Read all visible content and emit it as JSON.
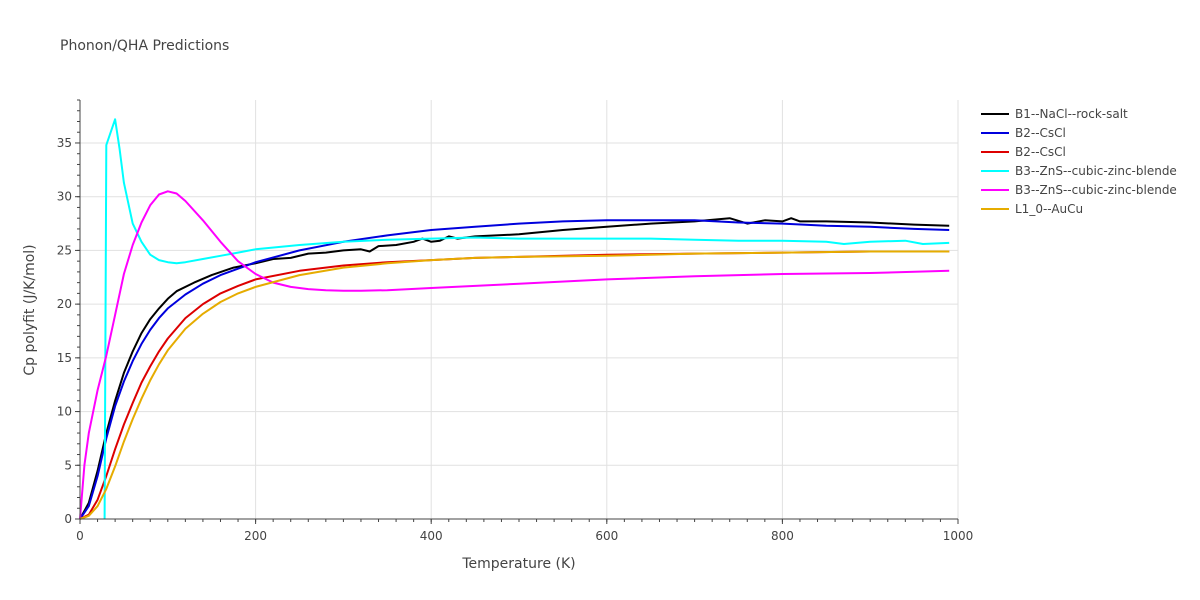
{
  "chart_data": {
    "type": "line",
    "title": "Phonon/QHA Predictions",
    "xlabel": "Temperature (K)",
    "ylabel": "Cp polyfit (J/K/mol)",
    "xlim": [
      0,
      1000
    ],
    "ylim": [
      0,
      39
    ],
    "x_ticks": [
      0,
      200,
      400,
      600,
      800,
      1000
    ],
    "y_ticks": [
      0,
      5,
      10,
      15,
      20,
      25,
      30,
      35
    ],
    "grid": true,
    "legend_position": "top-right",
    "series": [
      {
        "name": "B1--NaCl--rock-salt",
        "color": "#000000",
        "points": [
          [
            0,
            0
          ],
          [
            10,
            1.5
          ],
          [
            20,
            4.5
          ],
          [
            30,
            8
          ],
          [
            40,
            11
          ],
          [
            50,
            13.6
          ],
          [
            60,
            15.6
          ],
          [
            70,
            17.3
          ],
          [
            80,
            18.6
          ],
          [
            90,
            19.6
          ],
          [
            100,
            20.5
          ],
          [
            110,
            21.2
          ],
          [
            130,
            22
          ],
          [
            150,
            22.7
          ],
          [
            175,
            23.4
          ],
          [
            200,
            23.8
          ],
          [
            220,
            24.2
          ],
          [
            240,
            24.3
          ],
          [
            260,
            24.7
          ],
          [
            280,
            24.8
          ],
          [
            300,
            25
          ],
          [
            320,
            25.1
          ],
          [
            330,
            24.9
          ],
          [
            340,
            25.4
          ],
          [
            360,
            25.5
          ],
          [
            380,
            25.8
          ],
          [
            390,
            26.1
          ],
          [
            400,
            25.8
          ],
          [
            410,
            25.9
          ],
          [
            420,
            26.3
          ],
          [
            430,
            26.1
          ],
          [
            450,
            26.3
          ],
          [
            500,
            26.5
          ],
          [
            550,
            26.9
          ],
          [
            600,
            27.2
          ],
          [
            650,
            27.5
          ],
          [
            700,
            27.7
          ],
          [
            740,
            28
          ],
          [
            760,
            27.5
          ],
          [
            780,
            27.8
          ],
          [
            800,
            27.7
          ],
          [
            810,
            28
          ],
          [
            820,
            27.7
          ],
          [
            850,
            27.7
          ],
          [
            900,
            27.6
          ],
          [
            950,
            27.4
          ],
          [
            990,
            27.3
          ]
        ]
      },
      {
        "name": "B2--CsCl",
        "color": "#0000dd",
        "points": [
          [
            0,
            0
          ],
          [
            10,
            1.2
          ],
          [
            20,
            4
          ],
          [
            30,
            7.5
          ],
          [
            40,
            10.5
          ],
          [
            50,
            12.8
          ],
          [
            60,
            14.7
          ],
          [
            70,
            16.3
          ],
          [
            80,
            17.6
          ],
          [
            90,
            18.7
          ],
          [
            100,
            19.6
          ],
          [
            120,
            20.9
          ],
          [
            140,
            21.9
          ],
          [
            160,
            22.7
          ],
          [
            180,
            23.3
          ],
          [
            200,
            23.9
          ],
          [
            250,
            25
          ],
          [
            300,
            25.8
          ],
          [
            350,
            26.4
          ],
          [
            400,
            26.9
          ],
          [
            450,
            27.2
          ],
          [
            500,
            27.5
          ],
          [
            550,
            27.7
          ],
          [
            600,
            27.8
          ],
          [
            650,
            27.8
          ],
          [
            700,
            27.8
          ],
          [
            750,
            27.6
          ],
          [
            800,
            27.5
          ],
          [
            850,
            27.3
          ],
          [
            900,
            27.2
          ],
          [
            950,
            27
          ],
          [
            990,
            26.9
          ]
        ]
      },
      {
        "name": "B2--CsCl",
        "color": "#dd0000",
        "points": [
          [
            0,
            0
          ],
          [
            10,
            0.4
          ],
          [
            20,
            1.8
          ],
          [
            30,
            4
          ],
          [
            40,
            6.5
          ],
          [
            50,
            8.8
          ],
          [
            60,
            10.8
          ],
          [
            70,
            12.7
          ],
          [
            80,
            14.2
          ],
          [
            90,
            15.6
          ],
          [
            100,
            16.8
          ],
          [
            120,
            18.7
          ],
          [
            140,
            20
          ],
          [
            160,
            21
          ],
          [
            180,
            21.7
          ],
          [
            200,
            22.3
          ],
          [
            250,
            23.1
          ],
          [
            300,
            23.6
          ],
          [
            350,
            23.9
          ],
          [
            400,
            24.1
          ],
          [
            450,
            24.3
          ],
          [
            500,
            24.4
          ],
          [
            600,
            24.6
          ],
          [
            700,
            24.7
          ],
          [
            800,
            24.8
          ],
          [
            900,
            24.9
          ],
          [
            990,
            24.9
          ]
        ]
      },
      {
        "name": "B3--ZnS--cubic-zinc-blende",
        "color": "#00ffff",
        "points": [
          [
            28,
            0
          ],
          [
            30,
            34.8
          ],
          [
            35,
            36
          ],
          [
            40,
            37.2
          ],
          [
            45,
            34.5
          ],
          [
            50,
            31.3
          ],
          [
            60,
            27.5
          ],
          [
            70,
            25.8
          ],
          [
            80,
            24.6
          ],
          [
            90,
            24.1
          ],
          [
            100,
            23.9
          ],
          [
            110,
            23.8
          ],
          [
            120,
            23.9
          ],
          [
            140,
            24.2
          ],
          [
            160,
            24.5
          ],
          [
            180,
            24.8
          ],
          [
            200,
            25.1
          ],
          [
            250,
            25.5
          ],
          [
            300,
            25.8
          ],
          [
            350,
            26
          ],
          [
            400,
            26.1
          ],
          [
            450,
            26.2
          ],
          [
            500,
            26.1
          ],
          [
            550,
            26.1
          ],
          [
            600,
            26.1
          ],
          [
            650,
            26.1
          ],
          [
            700,
            26
          ],
          [
            750,
            25.9
          ],
          [
            800,
            25.9
          ],
          [
            850,
            25.8
          ],
          [
            870,
            25.6
          ],
          [
            900,
            25.8
          ],
          [
            940,
            25.9
          ],
          [
            960,
            25.6
          ],
          [
            990,
            25.7
          ]
        ]
      },
      {
        "name": "B3--ZnS--cubic-zinc-blende",
        "color": "#ff00ff",
        "points": [
          [
            0,
            0
          ],
          [
            5,
            5
          ],
          [
            10,
            8
          ],
          [
            20,
            12
          ],
          [
            30,
            15.2
          ],
          [
            40,
            19
          ],
          [
            50,
            22.8
          ],
          [
            60,
            25.5
          ],
          [
            70,
            27.6
          ],
          [
            80,
            29.2
          ],
          [
            90,
            30.2
          ],
          [
            100,
            30.5
          ],
          [
            110,
            30.3
          ],
          [
            120,
            29.6
          ],
          [
            140,
            27.8
          ],
          [
            160,
            25.8
          ],
          [
            180,
            24
          ],
          [
            200,
            22.8
          ],
          [
            220,
            22
          ],
          [
            240,
            21.6
          ],
          [
            260,
            21.4
          ],
          [
            280,
            21.3
          ],
          [
            300,
            21.25
          ],
          [
            320,
            21.25
          ],
          [
            350,
            21.3
          ],
          [
            400,
            21.5
          ],
          [
            500,
            21.9
          ],
          [
            600,
            22.3
          ],
          [
            700,
            22.6
          ],
          [
            800,
            22.8
          ],
          [
            900,
            22.9
          ],
          [
            990,
            23.1
          ]
        ]
      },
      {
        "name": "L1_0--AuCu",
        "color": "#e6ac00",
        "points": [
          [
            0,
            0
          ],
          [
            10,
            0.3
          ],
          [
            20,
            1.2
          ],
          [
            30,
            2.8
          ],
          [
            40,
            4.9
          ],
          [
            50,
            7.2
          ],
          [
            60,
            9.3
          ],
          [
            70,
            11.2
          ],
          [
            80,
            12.9
          ],
          [
            90,
            14.4
          ],
          [
            100,
            15.7
          ],
          [
            120,
            17.7
          ],
          [
            140,
            19.1
          ],
          [
            160,
            20.2
          ],
          [
            180,
            21
          ],
          [
            200,
            21.6
          ],
          [
            250,
            22.7
          ],
          [
            300,
            23.4
          ],
          [
            350,
            23.8
          ],
          [
            400,
            24.1
          ],
          [
            450,
            24.3
          ],
          [
            500,
            24.4
          ],
          [
            600,
            24.5
          ],
          [
            700,
            24.7
          ],
          [
            800,
            24.8
          ],
          [
            900,
            24.9
          ],
          [
            990,
            24.9
          ]
        ]
      }
    ]
  }
}
